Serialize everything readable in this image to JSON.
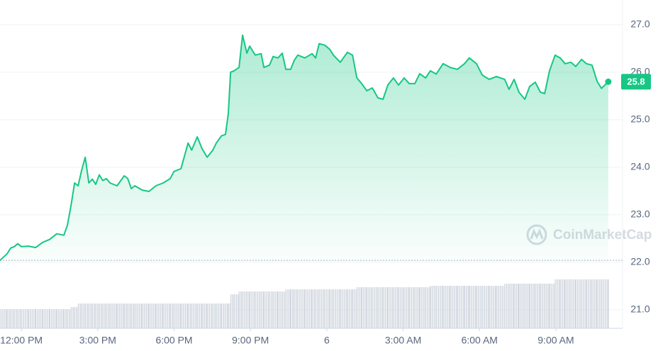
{
  "chart_data": {
    "type": "line",
    "watermark": "CoinMarketCap",
    "x": [
      -0.84,
      -0.56,
      -0.42,
      -0.28,
      -0.14,
      0,
      0.28,
      0.56,
      0.84,
      1.11,
      1.39,
      1.67,
      1.81,
      1.95,
      2.09,
      2.23,
      2.37,
      2.51,
      2.65,
      2.79,
      2.92,
      3.06,
      3.2,
      3.34,
      3.48,
      3.76,
      4.04,
      4.18,
      4.32,
      4.46,
      4.74,
      5.01,
      5.29,
      5.57,
      5.85,
      5.99,
      6.27,
      6.55,
      6.69,
      6.91,
      7.1,
      7.3,
      7.52,
      7.66,
      7.86,
      8.02,
      8.13,
      8.22,
      8.36,
      8.55,
      8.69,
      8.86,
      8.97,
      9.19,
      9.42,
      9.53,
      9.75,
      9.89,
      10.08,
      10.25,
      10.39,
      10.58,
      10.72,
      10.86,
      11.14,
      11.42,
      11.56,
      11.7,
      11.92,
      12.12,
      12.26,
      12.53,
      12.81,
      13.01,
      13.18,
      13.37,
      13.57,
      13.79,
      14.01,
      14.21,
      14.4,
      14.62,
      14.82,
      15.04,
      15.24,
      15.46,
      15.65,
      15.88,
      16.07,
      16.3,
      16.57,
      16.85,
      17.13,
      17.41,
      17.6,
      17.88,
      18.11,
      18.38,
      18.66,
      18.99,
      19.16,
      19.36,
      19.55,
      19.78,
      19.97,
      20.19,
      20.39,
      20.56,
      20.75,
      20.97,
      21.17,
      21.36,
      21.59,
      21.78,
      22.01,
      22.2,
      22.42,
      22.62,
      22.79,
      23.06
    ],
    "series": [
      {
        "color": "#16c784",
        "values": [
          22.04,
          22.18,
          22.3,
          22.33,
          22.39,
          22.33,
          22.34,
          22.31,
          22.42,
          22.48,
          22.6,
          22.57,
          22.78,
          23.19,
          23.67,
          23.61,
          23.94,
          24.21,
          23.67,
          23.75,
          23.64,
          23.84,
          23.72,
          23.76,
          23.67,
          23.61,
          23.82,
          23.76,
          23.55,
          23.61,
          23.52,
          23.49,
          23.61,
          23.67,
          23.76,
          23.91,
          23.97,
          24.51,
          24.36,
          24.64,
          24.39,
          24.21,
          24.36,
          24.51,
          24.66,
          24.69,
          25.13,
          26.0,
          26.03,
          26.1,
          26.78,
          26.4,
          26.55,
          26.36,
          26.39,
          26.1,
          26.15,
          26.33,
          26.3,
          26.4,
          26.06,
          26.06,
          26.25,
          26.36,
          26.3,
          26.39,
          26.3,
          26.6,
          26.57,
          26.48,
          26.36,
          26.21,
          26.42,
          26.36,
          25.88,
          25.76,
          25.61,
          25.67,
          25.46,
          25.43,
          25.73,
          25.88,
          25.73,
          25.88,
          25.76,
          25.76,
          25.97,
          25.88,
          26.03,
          25.96,
          26.18,
          26.1,
          26.06,
          26.18,
          26.3,
          26.18,
          25.94,
          25.85,
          25.91,
          25.85,
          25.64,
          25.85,
          25.58,
          25.43,
          25.7,
          25.79,
          25.58,
          25.55,
          26.03,
          26.36,
          26.3,
          26.18,
          26.21,
          26.12,
          26.27,
          26.18,
          26.15,
          25.81,
          25.66,
          25.8
        ]
      },
      {
        "type": "bar",
        "axis": "y2",
        "color": "#dfe3ea",
        "values": [
          27,
          27,
          27,
          27,
          27,
          27,
          27,
          27,
          27,
          27,
          27,
          27,
          27,
          30,
          30,
          35,
          35,
          35,
          35,
          35,
          35,
          35,
          35,
          35,
          35,
          35,
          35,
          35,
          35,
          35,
          35,
          35,
          35,
          35,
          35,
          35,
          35,
          35,
          35,
          35,
          35,
          35,
          35,
          35,
          35,
          35,
          35,
          48,
          48,
          52,
          52,
          52,
          52,
          52,
          52,
          52,
          52,
          52,
          52,
          52,
          55,
          55,
          55,
          55,
          55,
          55,
          55,
          55,
          55,
          55,
          55,
          55,
          55,
          55,
          58,
          58,
          58,
          58,
          58,
          58,
          58,
          58,
          58,
          58,
          58,
          58,
          58,
          58,
          60,
          60,
          60,
          60,
          60,
          60,
          60,
          60,
          60,
          60,
          60,
          63,
          63,
          63,
          63,
          63,
          63,
          63,
          63,
          63,
          63,
          69,
          69,
          69,
          69,
          69,
          69,
          69,
          69,
          69,
          69,
          69
        ]
      }
    ],
    "xlim": [
      -0.84,
      23.62
    ],
    "xticks": [
      {
        "value": 0,
        "label": "12:00 PM"
      },
      {
        "value": 3,
        "label": "3:00 PM"
      },
      {
        "value": 6,
        "label": "6:00 PM"
      },
      {
        "value": 9,
        "label": "9:00 PM"
      },
      {
        "value": 12,
        "label": "6"
      },
      {
        "value": 15,
        "label": "3:00 AM"
      },
      {
        "value": 18,
        "label": "6:00 AM"
      },
      {
        "value": 21,
        "label": "9:00 AM"
      }
    ],
    "ylim": [
      20.61,
      27.52
    ],
    "yticks": [
      {
        "value": 21,
        "label": "21.0"
      },
      {
        "value": 22,
        "label": "22.0"
      },
      {
        "value": 23,
        "label": "23.0"
      },
      {
        "value": 24,
        "label": "24.0"
      },
      {
        "value": 25,
        "label": "25.0"
      },
      {
        "value": 26,
        "label": "26.0"
      },
      {
        "value": 27,
        "label": "27.0"
      }
    ],
    "y2lim": [
      0,
      100
    ],
    "grid": true
  }
}
